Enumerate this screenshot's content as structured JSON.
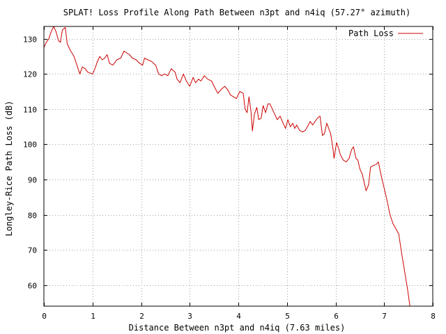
{
  "chart_data": {
    "type": "line",
    "title": "SPLAT! Loss Profile Along Path Between n3pt and n4iq (57.27° azimuth)",
    "xlabel": "Distance Between n3pt and n4iq (7.63 miles)",
    "ylabel": "Longley-Rice Path Loss (dB)",
    "xlim": [
      0,
      8
    ],
    "ylim": [
      54,
      133.5
    ],
    "xticks": [
      "0",
      "1",
      "2",
      "3",
      "4",
      "5",
      "6",
      "7",
      "8"
    ],
    "yticks": [
      "60",
      "70",
      "80",
      "90",
      "100",
      "110",
      "120",
      "130"
    ],
    "grid": true,
    "legend_position": "top-right",
    "colors": {
      "series": "#cc0000",
      "grid": "#a0a0a0",
      "frame": "#000000"
    },
    "series": [
      {
        "name": "Path Loss",
        "points": [
          [
            0.0,
            127.5
          ],
          [
            0.05,
            129.0
          ],
          [
            0.1,
            130.0
          ],
          [
            0.15,
            132.0
          ],
          [
            0.2,
            133.5
          ],
          [
            0.25,
            132.0
          ],
          [
            0.3,
            129.5
          ],
          [
            0.34,
            129.0
          ],
          [
            0.38,
            132.5
          ],
          [
            0.44,
            133.2
          ],
          [
            0.48,
            128.5
          ],
          [
            0.55,
            126.5
          ],
          [
            0.62,
            125.0
          ],
          [
            0.68,
            122.5
          ],
          [
            0.74,
            120.0
          ],
          [
            0.79,
            122.0
          ],
          [
            0.85,
            121.5
          ],
          [
            0.9,
            120.5
          ],
          [
            1.0,
            120.0
          ],
          [
            1.05,
            121.5
          ],
          [
            1.1,
            123.5
          ],
          [
            1.15,
            125.0
          ],
          [
            1.2,
            124.0
          ],
          [
            1.25,
            124.5
          ],
          [
            1.3,
            125.5
          ],
          [
            1.35,
            123.0
          ],
          [
            1.42,
            122.5
          ],
          [
            1.5,
            124.0
          ],
          [
            1.58,
            124.5
          ],
          [
            1.65,
            126.5
          ],
          [
            1.7,
            126.0
          ],
          [
            1.76,
            125.5
          ],
          [
            1.82,
            124.5
          ],
          [
            1.9,
            124.0
          ],
          [
            1.97,
            123.0
          ],
          [
            2.03,
            122.5
          ],
          [
            2.07,
            124.5
          ],
          [
            2.14,
            124.0
          ],
          [
            2.22,
            123.5
          ],
          [
            2.3,
            122.5
          ],
          [
            2.36,
            120.0
          ],
          [
            2.42,
            119.5
          ],
          [
            2.48,
            120.0
          ],
          [
            2.55,
            119.5
          ],
          [
            2.62,
            121.5
          ],
          [
            2.7,
            120.5
          ],
          [
            2.74,
            118.5
          ],
          [
            2.8,
            117.5
          ],
          [
            2.87,
            120.0
          ],
          [
            2.93,
            118.0
          ],
          [
            3.0,
            116.5
          ],
          [
            3.07,
            119.0
          ],
          [
            3.12,
            117.5
          ],
          [
            3.18,
            118.5
          ],
          [
            3.23,
            118.0
          ],
          [
            3.3,
            119.5
          ],
          [
            3.37,
            118.5
          ],
          [
            3.45,
            118.0
          ],
          [
            3.52,
            116.0
          ],
          [
            3.58,
            114.5
          ],
          [
            3.64,
            115.5
          ],
          [
            3.72,
            116.5
          ],
          [
            3.78,
            115.5
          ],
          [
            3.84,
            114.0
          ],
          [
            3.9,
            113.5
          ],
          [
            3.96,
            113.0
          ],
          [
            4.03,
            115.0
          ],
          [
            4.1,
            114.5
          ],
          [
            4.14,
            110.0
          ],
          [
            4.18,
            109.0
          ],
          [
            4.22,
            113.5
          ],
          [
            4.26,
            109.5
          ],
          [
            4.29,
            103.8
          ],
          [
            4.33,
            108.5
          ],
          [
            4.38,
            110.5
          ],
          [
            4.42,
            107.0
          ],
          [
            4.47,
            107.5
          ],
          [
            4.51,
            111.0
          ],
          [
            4.56,
            109.0
          ],
          [
            4.61,
            111.5
          ],
          [
            4.65,
            111.5
          ],
          [
            4.7,
            110.0
          ],
          [
            4.75,
            108.5
          ],
          [
            4.8,
            107.0
          ],
          [
            4.86,
            108.0
          ],
          [
            4.92,
            106.0
          ],
          [
            4.97,
            104.5
          ],
          [
            5.02,
            107.0
          ],
          [
            5.07,
            105.0
          ],
          [
            5.12,
            106.0
          ],
          [
            5.16,
            104.5
          ],
          [
            5.2,
            105.5
          ],
          [
            5.26,
            104.0
          ],
          [
            5.32,
            103.5
          ],
          [
            5.38,
            104.0
          ],
          [
            5.44,
            105.5
          ],
          [
            5.48,
            106.5
          ],
          [
            5.53,
            105.5
          ],
          [
            5.58,
            106.5
          ],
          [
            5.63,
            107.5
          ],
          [
            5.68,
            108.0
          ],
          [
            5.73,
            102.5
          ],
          [
            5.77,
            103.0
          ],
          [
            5.82,
            106.0
          ],
          [
            5.86,
            104.5
          ],
          [
            5.9,
            103.0
          ],
          [
            5.94,
            99.5
          ],
          [
            5.97,
            96.0
          ],
          [
            6.02,
            100.5
          ],
          [
            6.06,
            99.0
          ],
          [
            6.1,
            97.0
          ],
          [
            6.16,
            95.5
          ],
          [
            6.22,
            95.0
          ],
          [
            6.28,
            96.0
          ],
          [
            6.33,
            98.5
          ],
          [
            6.37,
            99.3
          ],
          [
            6.42,
            96.0
          ],
          [
            6.46,
            95.5
          ],
          [
            6.5,
            93.0
          ],
          [
            6.55,
            91.5
          ],
          [
            6.6,
            88.5
          ],
          [
            6.63,
            86.8
          ],
          [
            6.68,
            88.5
          ],
          [
            6.72,
            93.5
          ],
          [
            6.78,
            94.0
          ],
          [
            6.84,
            94.3
          ],
          [
            6.88,
            95.0
          ],
          [
            6.94,
            91.0
          ],
          [
            7.0,
            87.5
          ],
          [
            7.06,
            84.0
          ],
          [
            7.12,
            80.0
          ],
          [
            7.18,
            77.5
          ],
          [
            7.24,
            76.0
          ],
          [
            7.3,
            74.5
          ],
          [
            7.36,
            69.0
          ],
          [
            7.42,
            64.0
          ],
          [
            7.48,
            59.0
          ],
          [
            7.53,
            54.0
          ]
        ]
      }
    ]
  }
}
